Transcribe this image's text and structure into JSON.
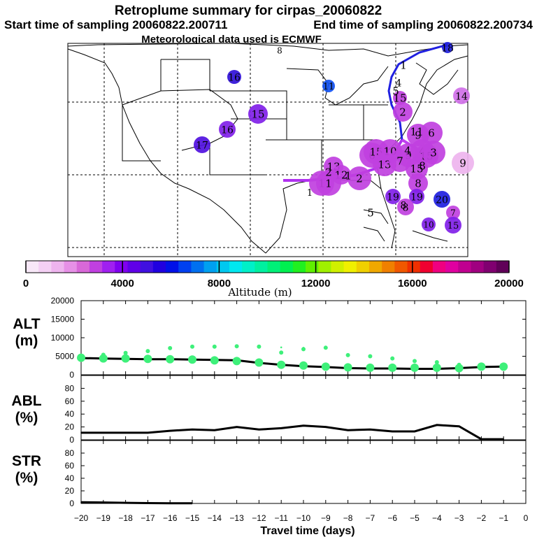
{
  "header": {
    "title": "Retroplume summary for cirpas_20060822",
    "start_label": "Start time of sampling 20060822.200711",
    "end_label": "End time of sampling 20060822.200734",
    "met_label": "Meteorological data used is ECMWF"
  },
  "colorbar": {
    "title": "Altitude (m)",
    "range": [
      0,
      20000
    ],
    "tick_labels": [
      "0",
      "4000",
      "8000",
      "12000",
      "16000",
      "20000"
    ],
    "colors": [
      "#f8e8f8",
      "#f4d0f4",
      "#eeb4ee",
      "#e690e6",
      "#d868d8",
      "#c040e0",
      "#a020f0",
      "#8000f0",
      "#6000e8",
      "#4010e0",
      "#2000e0",
      "#0010e8",
      "#0040f0",
      "#0070f0",
      "#00a0f0",
      "#00c8f0",
      "#00e8f0",
      "#00f0c8",
      "#00f0a0",
      "#00f078",
      "#00f050",
      "#20f020",
      "#60f000",
      "#a0f000",
      "#d0f000",
      "#f0f000",
      "#f0d000",
      "#f0a800",
      "#f08000",
      "#f05800",
      "#f03000",
      "#f00030",
      "#f00080",
      "#e000a0",
      "#c00090",
      "#a00080",
      "#800070",
      "#600058"
    ]
  },
  "map": {
    "trajectory_colors": [
      "#2020e0",
      "#b030f0",
      "#c040f0"
    ],
    "plume_labels": [
      {
        "label": "18",
        "alt_m": 4600,
        "color": "#2020e0"
      },
      {
        "label": "8",
        "alt_m": 5200,
        "color": "#2020e0"
      },
      {
        "label": "16",
        "alt_m": 4800,
        "color": "#3010d8"
      },
      {
        "label": "15",
        "alt_m": 3800,
        "color": "#8020e8"
      },
      {
        "label": "16",
        "alt_m": 3600,
        "color": "#8020e8"
      },
      {
        "label": "17",
        "alt_m": 4300,
        "color": "#5010e0"
      },
      {
        "label": "11",
        "alt_m": 4900,
        "color": "#1050f0"
      },
      {
        "label": "14",
        "alt_m": 2000,
        "color": "#d070e8"
      },
      {
        "label": "13",
        "alt_m": 2000,
        "color": "#c040e0"
      },
      {
        "label": "12",
        "alt_m": 2000,
        "color": "#c040e0"
      },
      {
        "label": "6",
        "alt_m": 2000,
        "color": "#c040e0"
      },
      {
        "label": "15",
        "alt_m": 2000,
        "color": "#c040e0"
      },
      {
        "label": "10",
        "alt_m": 2000,
        "color": "#c040e0"
      },
      {
        "label": "9",
        "alt_m": 2000,
        "color": "#c040e0"
      },
      {
        "label": "4",
        "alt_m": 2000,
        "color": "#c040e0"
      },
      {
        "label": "15",
        "alt_m": 2000,
        "color": "#c040e0"
      },
      {
        "label": "3",
        "alt_m": 2000,
        "color": "#c040e0"
      },
      {
        "label": "9",
        "alt_m": 1200,
        "color": "#eeb4ee"
      },
      {
        "label": "13",
        "alt_m": 2000,
        "color": "#c040e0"
      },
      {
        "label": "7",
        "alt_m": 2000,
        "color": "#c040e0"
      },
      {
        "label": "2",
        "alt_m": 2000,
        "color": "#c040e0"
      },
      {
        "label": "2",
        "alt_m": 2000,
        "color": "#c040e0"
      },
      {
        "label": "15",
        "alt_m": 2000,
        "color": "#c040e0"
      },
      {
        "label": "9",
        "alt_m": 2000,
        "color": "#c040e0"
      },
      {
        "label": "6",
        "alt_m": 2000,
        "color": "#c040e0"
      },
      {
        "label": "15",
        "alt_m": 2000,
        "color": "#c040e0"
      },
      {
        "label": "8",
        "alt_m": 2000,
        "color": "#c040e0"
      },
      {
        "label": "1",
        "alt_m": 1800,
        "color": "#c040e0"
      },
      {
        "label": "1",
        "alt_m": 1800,
        "color": "#c040e0"
      },
      {
        "label": "19",
        "alt_m": 2600,
        "color": "#8020e8"
      },
      {
        "label": "19",
        "alt_m": 2600,
        "color": "#8020e8"
      },
      {
        "label": "8",
        "alt_m": 2400,
        "color": "#c040e0"
      },
      {
        "label": "20",
        "alt_m": 4600,
        "color": "#2020e0"
      },
      {
        "label": "7",
        "alt_m": 2000,
        "color": "#c040e0"
      },
      {
        "label": "5",
        "alt_m": 2000,
        "color": "#ffffff"
      },
      {
        "label": "10",
        "alt_m": 3400,
        "color": "#8020e8"
      },
      {
        "label": "15",
        "alt_m": 3600,
        "color": "#8020e8"
      },
      {
        "label": "1",
        "alt_m": 1800,
        "color": "#c040e0"
      },
      {
        "label": "5",
        "alt_m": 1800,
        "color": "#c040e0"
      },
      {
        "label": "4",
        "alt_m": 1800,
        "color": "#c040e0"
      },
      {
        "label": "8",
        "alt_m": 1800,
        "color": "#c040e0"
      },
      {
        "label": "2",
        "alt_m": 1800,
        "color": "#c040e0"
      },
      {
        "label": "11",
        "alt_m": 1800,
        "color": "#c040e0"
      },
      {
        "label": "1",
        "alt_m": 1800,
        "color": "#c040e0"
      },
      {
        "label": "1",
        "alt_m": 1800,
        "color": "#c040e0"
      },
      {
        "label": "4",
        "alt_m": 1800,
        "color": "#c040e0"
      },
      {
        "label": "8",
        "alt_m": 1800,
        "color": "#c040e0"
      }
    ]
  },
  "chart_data": [
    {
      "panel": "ALT",
      "type": "scatter",
      "ylabel": [
        "ALT",
        "(m)"
      ],
      "ylim": [
        0,
        20000
      ],
      "yticks": [
        0,
        5000,
        10000,
        15000,
        20000
      ],
      "ytick_labels": [
        "0",
        "5000",
        "10000",
        "15000",
        "20000"
      ],
      "x": [
        -20,
        -19,
        -18,
        -17,
        -16,
        -15,
        -14,
        -13,
        -12,
        -11,
        -10,
        -9,
        -8,
        -7,
        -6,
        -5,
        -4,
        -3,
        -2,
        -1
      ],
      "series": [
        {
          "name": "median altitude",
          "kind": "line",
          "color": "#000000",
          "values": [
            4500,
            4400,
            4300,
            4200,
            4200,
            4100,
            4000,
            3900,
            3200,
            2700,
            2300,
            2100,
            1800,
            1700,
            1700,
            1600,
            1600,
            1800,
            2100,
            2200
          ]
        },
        {
          "name": "plume fraction altitude",
          "kind": "dots",
          "color": "#3ef07a",
          "values": [
            4600,
            4400,
            4400,
            4300,
            4200,
            4100,
            3900,
            3700,
            3300,
            2700,
            2500,
            2200,
            2000,
            1900,
            1900,
            1900,
            1900,
            1800,
            2200,
            2200
          ]
        },
        {
          "name": "secondary altitude",
          "kind": "dots",
          "color": "#3ef07a",
          "values": [
            4800,
            5400,
            5900,
            6400,
            7200,
            7600,
            7600,
            7700,
            7600,
            6000,
            6900,
            7300,
            5300,
            5000,
            4400,
            3700,
            3400,
            2700,
            2200,
            2200
          ]
        },
        {
          "name": "upper altitude",
          "kind": "dots",
          "color": "#3ef07a",
          "values": [
            null,
            null,
            null,
            null,
            null,
            7600,
            7600,
            7700,
            7600,
            7400,
            7300,
            7300,
            null,
            null,
            null,
            null,
            null,
            null,
            null,
            null
          ]
        }
      ]
    },
    {
      "panel": "ABL",
      "type": "line",
      "ylabel": [
        "ABL",
        "(%)"
      ],
      "ylim": [
        0,
        100
      ],
      "yticks": [
        0,
        20,
        40,
        60,
        80
      ],
      "ytick_labels": [
        "0",
        "20",
        "40",
        "60",
        "80"
      ],
      "x": [
        -20,
        -19,
        -18,
        -17,
        -16,
        -15,
        -14,
        -13,
        -12,
        -11,
        -10,
        -9,
        -8,
        -7,
        -6,
        -5,
        -4,
        -3,
        -2,
        -1
      ],
      "series": [
        {
          "name": "fraction in boundary layer",
          "color": "#000000",
          "values": [
            11,
            11,
            11,
            11,
            14,
            16,
            15,
            20,
            16,
            18,
            22,
            20,
            15,
            16,
            13,
            13,
            23,
            21,
            1,
            1
          ]
        }
      ]
    },
    {
      "panel": "STR",
      "type": "line",
      "ylabel": [
        "STR",
        "(%)"
      ],
      "ylim": [
        0,
        100
      ],
      "yticks": [
        0,
        20,
        40,
        60,
        80
      ],
      "ytick_labels": [
        "0",
        "20",
        "40",
        "60",
        "80"
      ],
      "x": [
        -20,
        -19,
        -18,
        -17,
        -16,
        -15
      ],
      "series": [
        {
          "name": "fraction in stratosphere",
          "color": "#000000",
          "values": [
            2,
            1.5,
            1,
            0.5,
            0.3,
            0.2
          ]
        }
      ]
    }
  ],
  "x_axis": {
    "xlabel": "Travel time (days)",
    "xlim": [
      -20,
      0
    ],
    "ticks": [
      -20,
      -19,
      -18,
      -17,
      -16,
      -15,
      -14,
      -13,
      -12,
      -11,
      -10,
      -9,
      -8,
      -7,
      -6,
      -5,
      -4,
      -3,
      -2,
      -1,
      0
    ],
    "tick_labels": [
      "−20",
      "−19",
      "−18",
      "−17",
      "−16",
      "−15",
      "−14",
      "−13",
      "−12",
      "−11",
      "−10",
      "−9",
      "−8",
      "−7",
      "−6",
      "−5",
      "−4",
      "−3",
      "−2",
      "−1",
      "0"
    ]
  }
}
